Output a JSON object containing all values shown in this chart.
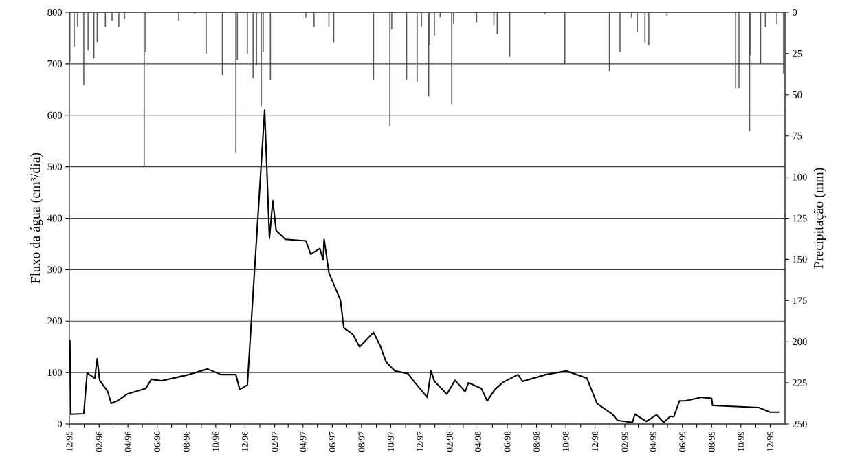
{
  "chart_data": {
    "type": "line",
    "ylabel": "Fluxo da água (cm³/dia)",
    "y2label": "Precipitação (mm)",
    "grid": "y",
    "xlim": [
      "1995-12",
      "2000-01"
    ],
    "xticks": [
      {
        "value": "1995-12",
        "label": "12/95"
      },
      {
        "value": "1996-01",
        "label": null
      },
      {
        "value": "1996-02",
        "label": "02/96"
      },
      {
        "value": "1996-03",
        "label": null
      },
      {
        "value": "1996-04",
        "label": "04/96"
      },
      {
        "value": "1996-05",
        "label": null
      },
      {
        "value": "1996-06",
        "label": "06/96"
      },
      {
        "value": "1996-07",
        "label": null
      },
      {
        "value": "1996-08",
        "label": "08/96"
      },
      {
        "value": "1996-09",
        "label": null
      },
      {
        "value": "1996-10",
        "label": "10/96"
      },
      {
        "value": "1996-11",
        "label": null
      },
      {
        "value": "1996-12",
        "label": "12/96"
      },
      {
        "value": "1997-01",
        "label": null
      },
      {
        "value": "1997-02",
        "label": "02/97"
      },
      {
        "value": "1997-03",
        "label": null
      },
      {
        "value": "1997-04",
        "label": "04/97"
      },
      {
        "value": "1997-05",
        "label": null
      },
      {
        "value": "1997-06",
        "label": "06/97"
      },
      {
        "value": "1997-07",
        "label": null
      },
      {
        "value": "1997-08",
        "label": "08/97"
      },
      {
        "value": "1997-09",
        "label": null
      },
      {
        "value": "1997-10",
        "label": "10/97"
      },
      {
        "value": "1997-11",
        "label": null
      },
      {
        "value": "1997-12",
        "label": "12/97"
      },
      {
        "value": "1998-01",
        "label": null
      },
      {
        "value": "1998-02",
        "label": "02/98"
      },
      {
        "value": "1998-03",
        "label": null
      },
      {
        "value": "1998-04",
        "label": "04/98"
      },
      {
        "value": "1998-05",
        "label": null
      },
      {
        "value": "1998-06",
        "label": "06/98"
      },
      {
        "value": "1998-07",
        "label": null
      },
      {
        "value": "1998-08",
        "label": "08/98"
      },
      {
        "value": "1998-09",
        "label": null
      },
      {
        "value": "1998-10",
        "label": "10/98"
      },
      {
        "value": "1998-11",
        "label": null
      },
      {
        "value": "1998-12",
        "label": "12/98"
      },
      {
        "value": "1999-01",
        "label": null
      },
      {
        "value": "1999-02",
        "label": "02/99"
      },
      {
        "value": "1999-03",
        "label": null
      },
      {
        "value": "1999-04",
        "label": "04/99"
      },
      {
        "value": "1999-05",
        "label": null
      },
      {
        "value": "1999-06",
        "label": "06/99"
      },
      {
        "value": "1999-07",
        "label": null
      },
      {
        "value": "1999-08",
        "label": "08/99"
      },
      {
        "value": "1999-09",
        "label": null
      },
      {
        "value": "1999-10",
        "label": "10/99"
      },
      {
        "value": "1999-11",
        "label": null
      },
      {
        "value": "1999-12",
        "label": "12/99"
      }
    ],
    "ylim": [
      0,
      800
    ],
    "yticks": [
      0,
      100,
      200,
      300,
      400,
      500,
      600,
      700,
      800
    ],
    "y2lim": [
      250,
      0
    ],
    "y2ticks": [
      0,
      25,
      50,
      75,
      100,
      125,
      150,
      175,
      200,
      225,
      250
    ],
    "series": [
      {
        "color": "#000000",
        "x": [
          "1995-12-02",
          "1995-12-04",
          "1995-12-31",
          "1996-01-07",
          "1996-01-23",
          "1996-01-28",
          "1996-02-02",
          "1996-02-19",
          "1996-02-26",
          "1996-03-10",
          "1996-03-30",
          "1996-05-08",
          "1996-05-20",
          "1996-06-10",
          "1996-07-18",
          "1996-08-06",
          "1996-09-14",
          "1996-10-12",
          "1996-11-12",
          "1996-11-20",
          "1996-12-06",
          "1997-01-11",
          "1997-01-21",
          "1997-01-28",
          "1997-02-04",
          "1997-02-23",
          "1997-04-07",
          "1997-04-17",
          "1997-05-06",
          "1997-05-13",
          "1997-05-15",
          "1997-05-25",
          "1997-06-18",
          "1997-06-25",
          "1997-07-14",
          "1997-07-28",
          "1997-08-26",
          "1997-09-09",
          "1997-09-21",
          "1997-10-10",
          "1997-11-06",
          "1997-11-20",
          "1997-12-16",
          "1997-12-24",
          "1997-12-31",
          "1998-01-26",
          "1998-02-12",
          "1998-03-05",
          "1998-03-12",
          "1998-04-08",
          "1998-04-20",
          "1998-05-06",
          "1998-05-23",
          "1998-06-23",
          "1998-07-03",
          "1998-08-20",
          "1998-10-02",
          "1998-11-14",
          "1998-12-05",
          "1999-01-05",
          "1999-01-17",
          "1999-02-17",
          "1999-02-22",
          "1999-03-18",
          "1999-04-08",
          "1999-04-23",
          "1999-05-07",
          "1999-05-14",
          "1999-05-26",
          "1999-06-07",
          "1999-07-11",
          "1999-08-01",
          "1999-08-03",
          "1999-11-07",
          "1999-12-01",
          "1999-12-20"
        ],
        "values": [
          163,
          19,
          20,
          99,
          89,
          127,
          85,
          63,
          40,
          45,
          58,
          69,
          87,
          84,
          92,
          96,
          107,
          96,
          96,
          67,
          76,
          610,
          361,
          434,
          376,
          359,
          356,
          330,
          341,
          319,
          359,
          294,
          241,
          187,
          174,
          150,
          178,
          152,
          121,
          103,
          98,
          81,
          52,
          103,
          83,
          58,
          85,
          63,
          80,
          69,
          45,
          67,
          81,
          96,
          83,
          96,
          103,
          89,
          40,
          20,
          7,
          3,
          19,
          5,
          18,
          3,
          15,
          14,
          45,
          45,
          52,
          50,
          36,
          32,
          23,
          23
        ]
      },
      {
        "type": "bar",
        "axis": "y2",
        "color": "#555555",
        "x": [
          "1995-12-02",
          "1995-12-11",
          "1995-12-18",
          "1995-12-31",
          "1996-01-09",
          "1996-01-21",
          "1996-01-28",
          "1996-02-14",
          "1996-02-28",
          "1996-03-13",
          "1996-03-25",
          "1996-05-05",
          "1996-05-08",
          "1996-07-16",
          "1996-08-18",
          "1996-09-11",
          "1996-10-15",
          "1996-11-12",
          "1996-11-15",
          "1996-12-06",
          "1996-12-18",
          "1996-12-25",
          "1997-01-04",
          "1997-01-08",
          "1997-01-23",
          "1997-04-07",
          "1997-04-24",
          "1997-05-25",
          "1997-06-04",
          "1997-08-26",
          "1997-09-29",
          "1997-10-03",
          "1997-11-03",
          "1997-11-25",
          "1997-12-04",
          "1997-12-19",
          "1997-12-21",
          "1997-12-31",
          "1998-01-12",
          "1998-02-05",
          "1998-02-09",
          "1998-03-29",
          "1998-05-04",
          "1998-05-11",
          "1998-06-06",
          "1998-08-19",
          "1998-09-29",
          "1998-12-31",
          "1999-01-22",
          "1999-02-15",
          "1999-02-27",
          "1999-03-15",
          "1999-03-23",
          "1999-04-30",
          "1999-09-20",
          "1999-09-27",
          "1999-10-19",
          "1999-10-21",
          "1999-11-11",
          "1999-11-21",
          "1999-12-15",
          "1999-12-29"
        ],
        "values": [
          30,
          21,
          9,
          44,
          23,
          28,
          18,
          9,
          5,
          9,
          4,
          93,
          24,
          5,
          1,
          25,
          38,
          85,
          29,
          25,
          40,
          32,
          57,
          24,
          41,
          3,
          9,
          9,
          18,
          41,
          69,
          10,
          41,
          42,
          9,
          51,
          20,
          14,
          3,
          56,
          7,
          6,
          8,
          13,
          27,
          1,
          31,
          36,
          24,
          3,
          12,
          18,
          20,
          2,
          46,
          46,
          72,
          26,
          31,
          9,
          7,
          37
        ]
      }
    ]
  }
}
